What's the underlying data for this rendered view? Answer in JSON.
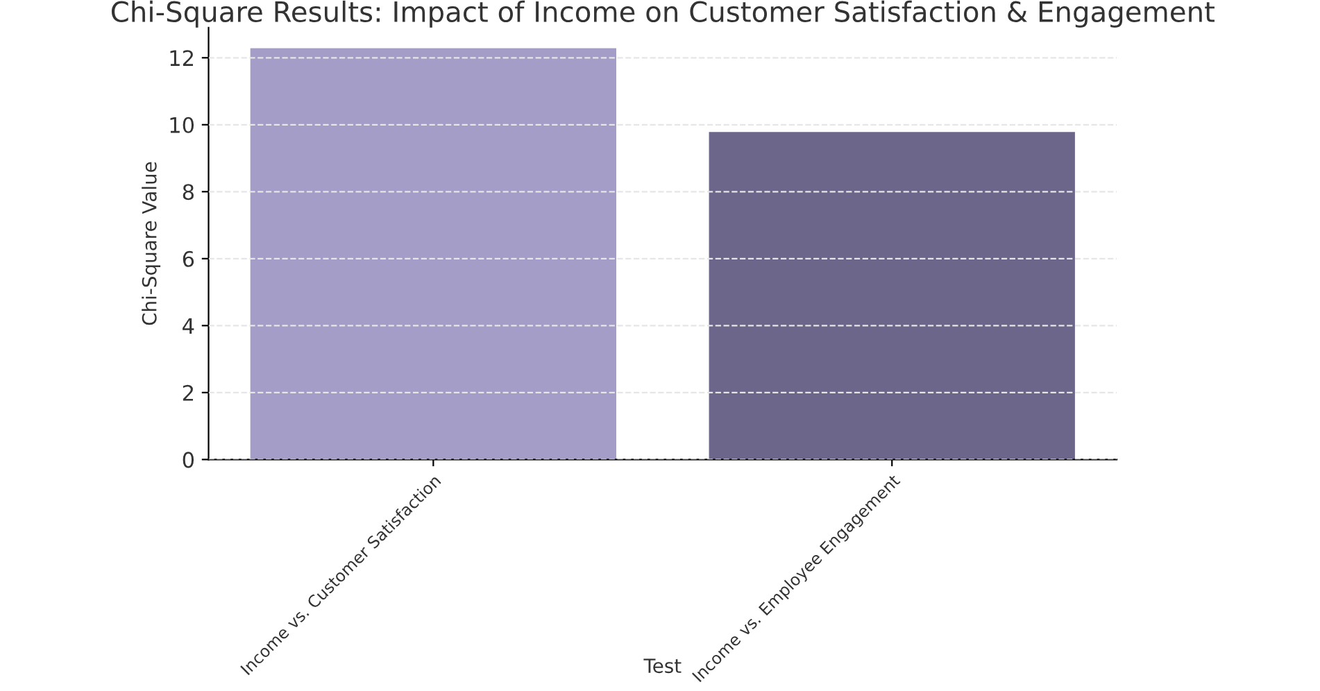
{
  "chart_data": {
    "type": "bar",
    "title": "Chi-Square Results: Impact of Income on Customer Satisfaction & Engagement",
    "xlabel": "Test",
    "ylabel": "Chi-Square Value",
    "categories": [
      "Income vs. Customer Satisfaction",
      "Income vs. Employee Engagement"
    ],
    "values": [
      12.3,
      9.8
    ],
    "colors": [
      "#a39dc7",
      "#6c668a"
    ],
    "ylim": [
      0,
      12.9
    ],
    "yticks": [
      0,
      2,
      4,
      6,
      8,
      10,
      12
    ],
    "grid": "y"
  }
}
